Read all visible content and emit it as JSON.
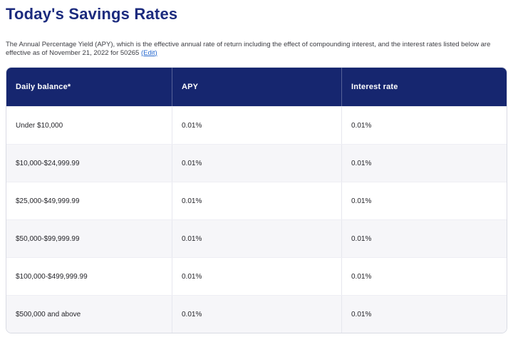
{
  "page": {
    "title": "Today's Savings Rates",
    "description": "The Annual Percentage Yield (APY), which is the effective annual rate of return including the effect of compounding interest, and the interest rates listed below are effective as of November 21, 2022 for 50265 ",
    "edit_link_label": "(Edit)"
  },
  "colors": {
    "header_bg": "#16266f",
    "title_text": "#1c2b7e",
    "link_blue": "#2668cf",
    "alt_row_bg": "#f6f6f9",
    "table_border": "#d9dbe4",
    "header_text": "#ffffff",
    "body_text": "#26262b"
  },
  "table": {
    "columns": [
      "Daily balance*",
      "APY",
      "Interest rate"
    ],
    "rows": [
      {
        "balance": "Under $10,000",
        "apy": "0.01%",
        "interest_rate": "0.01%"
      },
      {
        "balance": "$10,000-$24,999.99",
        "apy": "0.01%",
        "interest_rate": "0.01%"
      },
      {
        "balance": "$25,000-$49,999.99",
        "apy": "0.01%",
        "interest_rate": "0.01%"
      },
      {
        "balance": "$50,000-$99,999.99",
        "apy": "0.01%",
        "interest_rate": "0.01%"
      },
      {
        "balance": "$100,000-$499,999.99",
        "apy": "0.01%",
        "interest_rate": "0.01%"
      },
      {
        "balance": "$500,000 and above",
        "apy": "0.01%",
        "interest_rate": "0.01%"
      }
    ]
  }
}
